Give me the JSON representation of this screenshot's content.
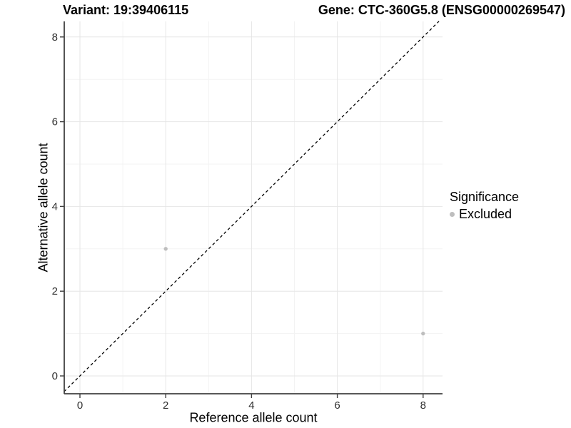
{
  "titles": {
    "variant": "Variant: 19:39406115",
    "gene": "Gene: CTC-360G5.8 (ENSG00000269547)"
  },
  "legend": {
    "title": "Significance",
    "items": [
      {
        "label": "Excluded",
        "color": "#bebebe"
      }
    ]
  },
  "colors": {
    "point": "#bebebe",
    "grid_major": "#e6e6e6",
    "grid_minor": "#f3f3f3",
    "axis_line": "#404040",
    "tick_label": "#303030",
    "identity_line": "#000000",
    "background": "#ffffff"
  },
  "chart_data": {
    "type": "scatter",
    "title_left": "Variant: 19:39406115",
    "title_right": "Gene: CTC-360G5.8 (ENSG00000269547)",
    "xlabel": "Reference allele count",
    "ylabel": "Alternative allele count",
    "xlim": [
      -0.37,
      8.45
    ],
    "ylim": [
      -0.42,
      8.37
    ],
    "x_ticks": [
      0,
      2,
      4,
      6,
      8
    ],
    "y_ticks": [
      0,
      2,
      4,
      6,
      8
    ],
    "x_minor_ticks": [
      1,
      3,
      5,
      7
    ],
    "y_minor_ticks": [
      1,
      3,
      5,
      7
    ],
    "grid": true,
    "legend_position": "right",
    "identity_line": {
      "style": "dashed",
      "from": -0.37,
      "to": 8.37
    },
    "series": [
      {
        "name": "Excluded",
        "color": "#bebebe",
        "points": [
          {
            "x": 2,
            "y": 3
          },
          {
            "x": 8,
            "y": 1
          }
        ]
      }
    ]
  }
}
